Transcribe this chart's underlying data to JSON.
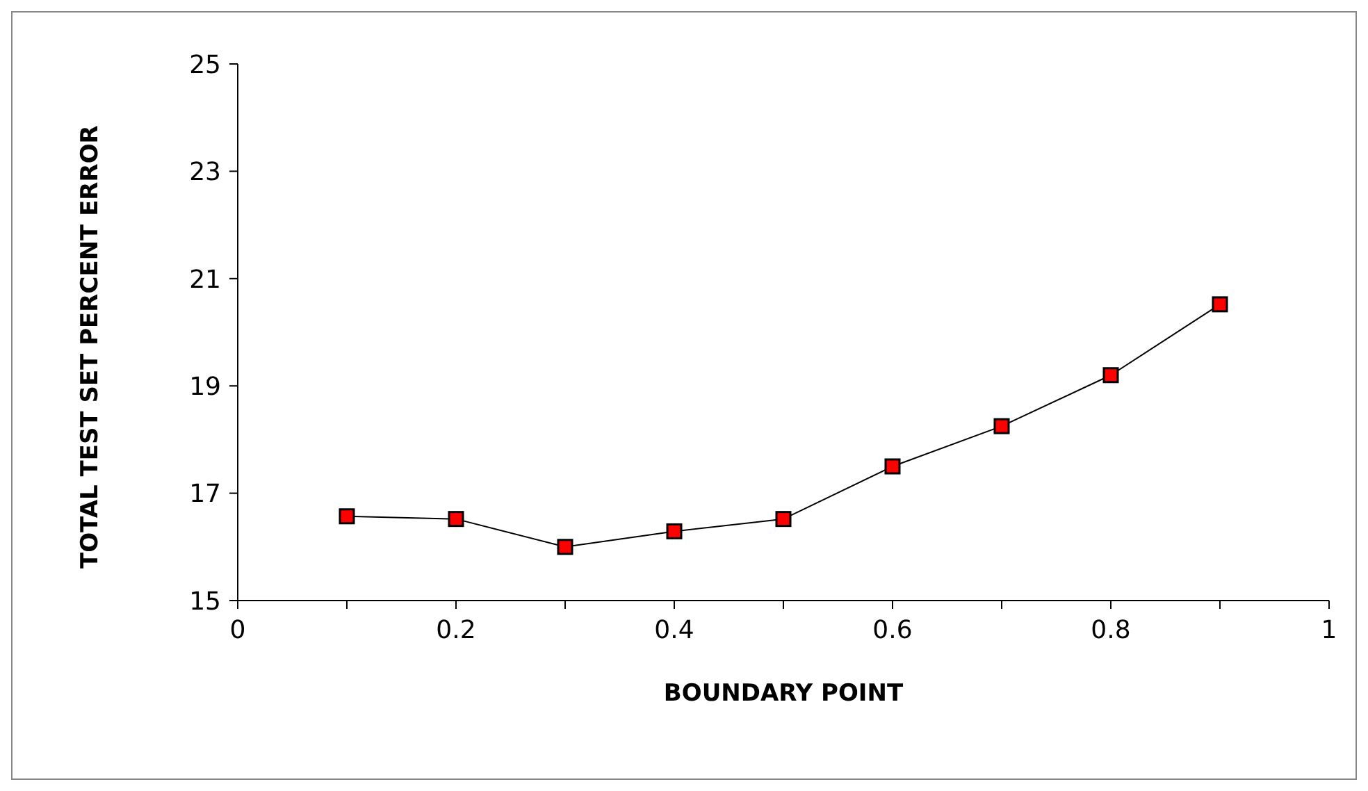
{
  "chart_data": {
    "type": "line",
    "xlabel": "BOUNDARY POINT",
    "ylabel": "TOTAL TEST SET PERCENT ERROR",
    "x": [
      0.1,
      0.2,
      0.3,
      0.4,
      0.5,
      0.6,
      0.7,
      0.8,
      0.9
    ],
    "series": [
      {
        "color": "#ff0000",
        "values": [
          16.57,
          16.52,
          16.0,
          16.29,
          16.52,
          17.5,
          18.25,
          19.2,
          20.52
        ]
      }
    ],
    "xlim": [
      0,
      1
    ],
    "xticks": [
      0,
      {
        "value": 0.1,
        "label": null
      },
      0.2,
      {
        "value": 0.3,
        "label": null
      },
      0.4,
      {
        "value": 0.5,
        "label": null
      },
      0.6,
      {
        "value": 0.7,
        "label": null
      },
      0.8,
      {
        "value": 0.9,
        "label": null
      },
      1
    ],
    "ylim": [
      15,
      25
    ],
    "yticks": [
      15,
      17,
      19,
      21,
      23,
      25
    ],
    "marker": "square",
    "line_style": "solid"
  }
}
